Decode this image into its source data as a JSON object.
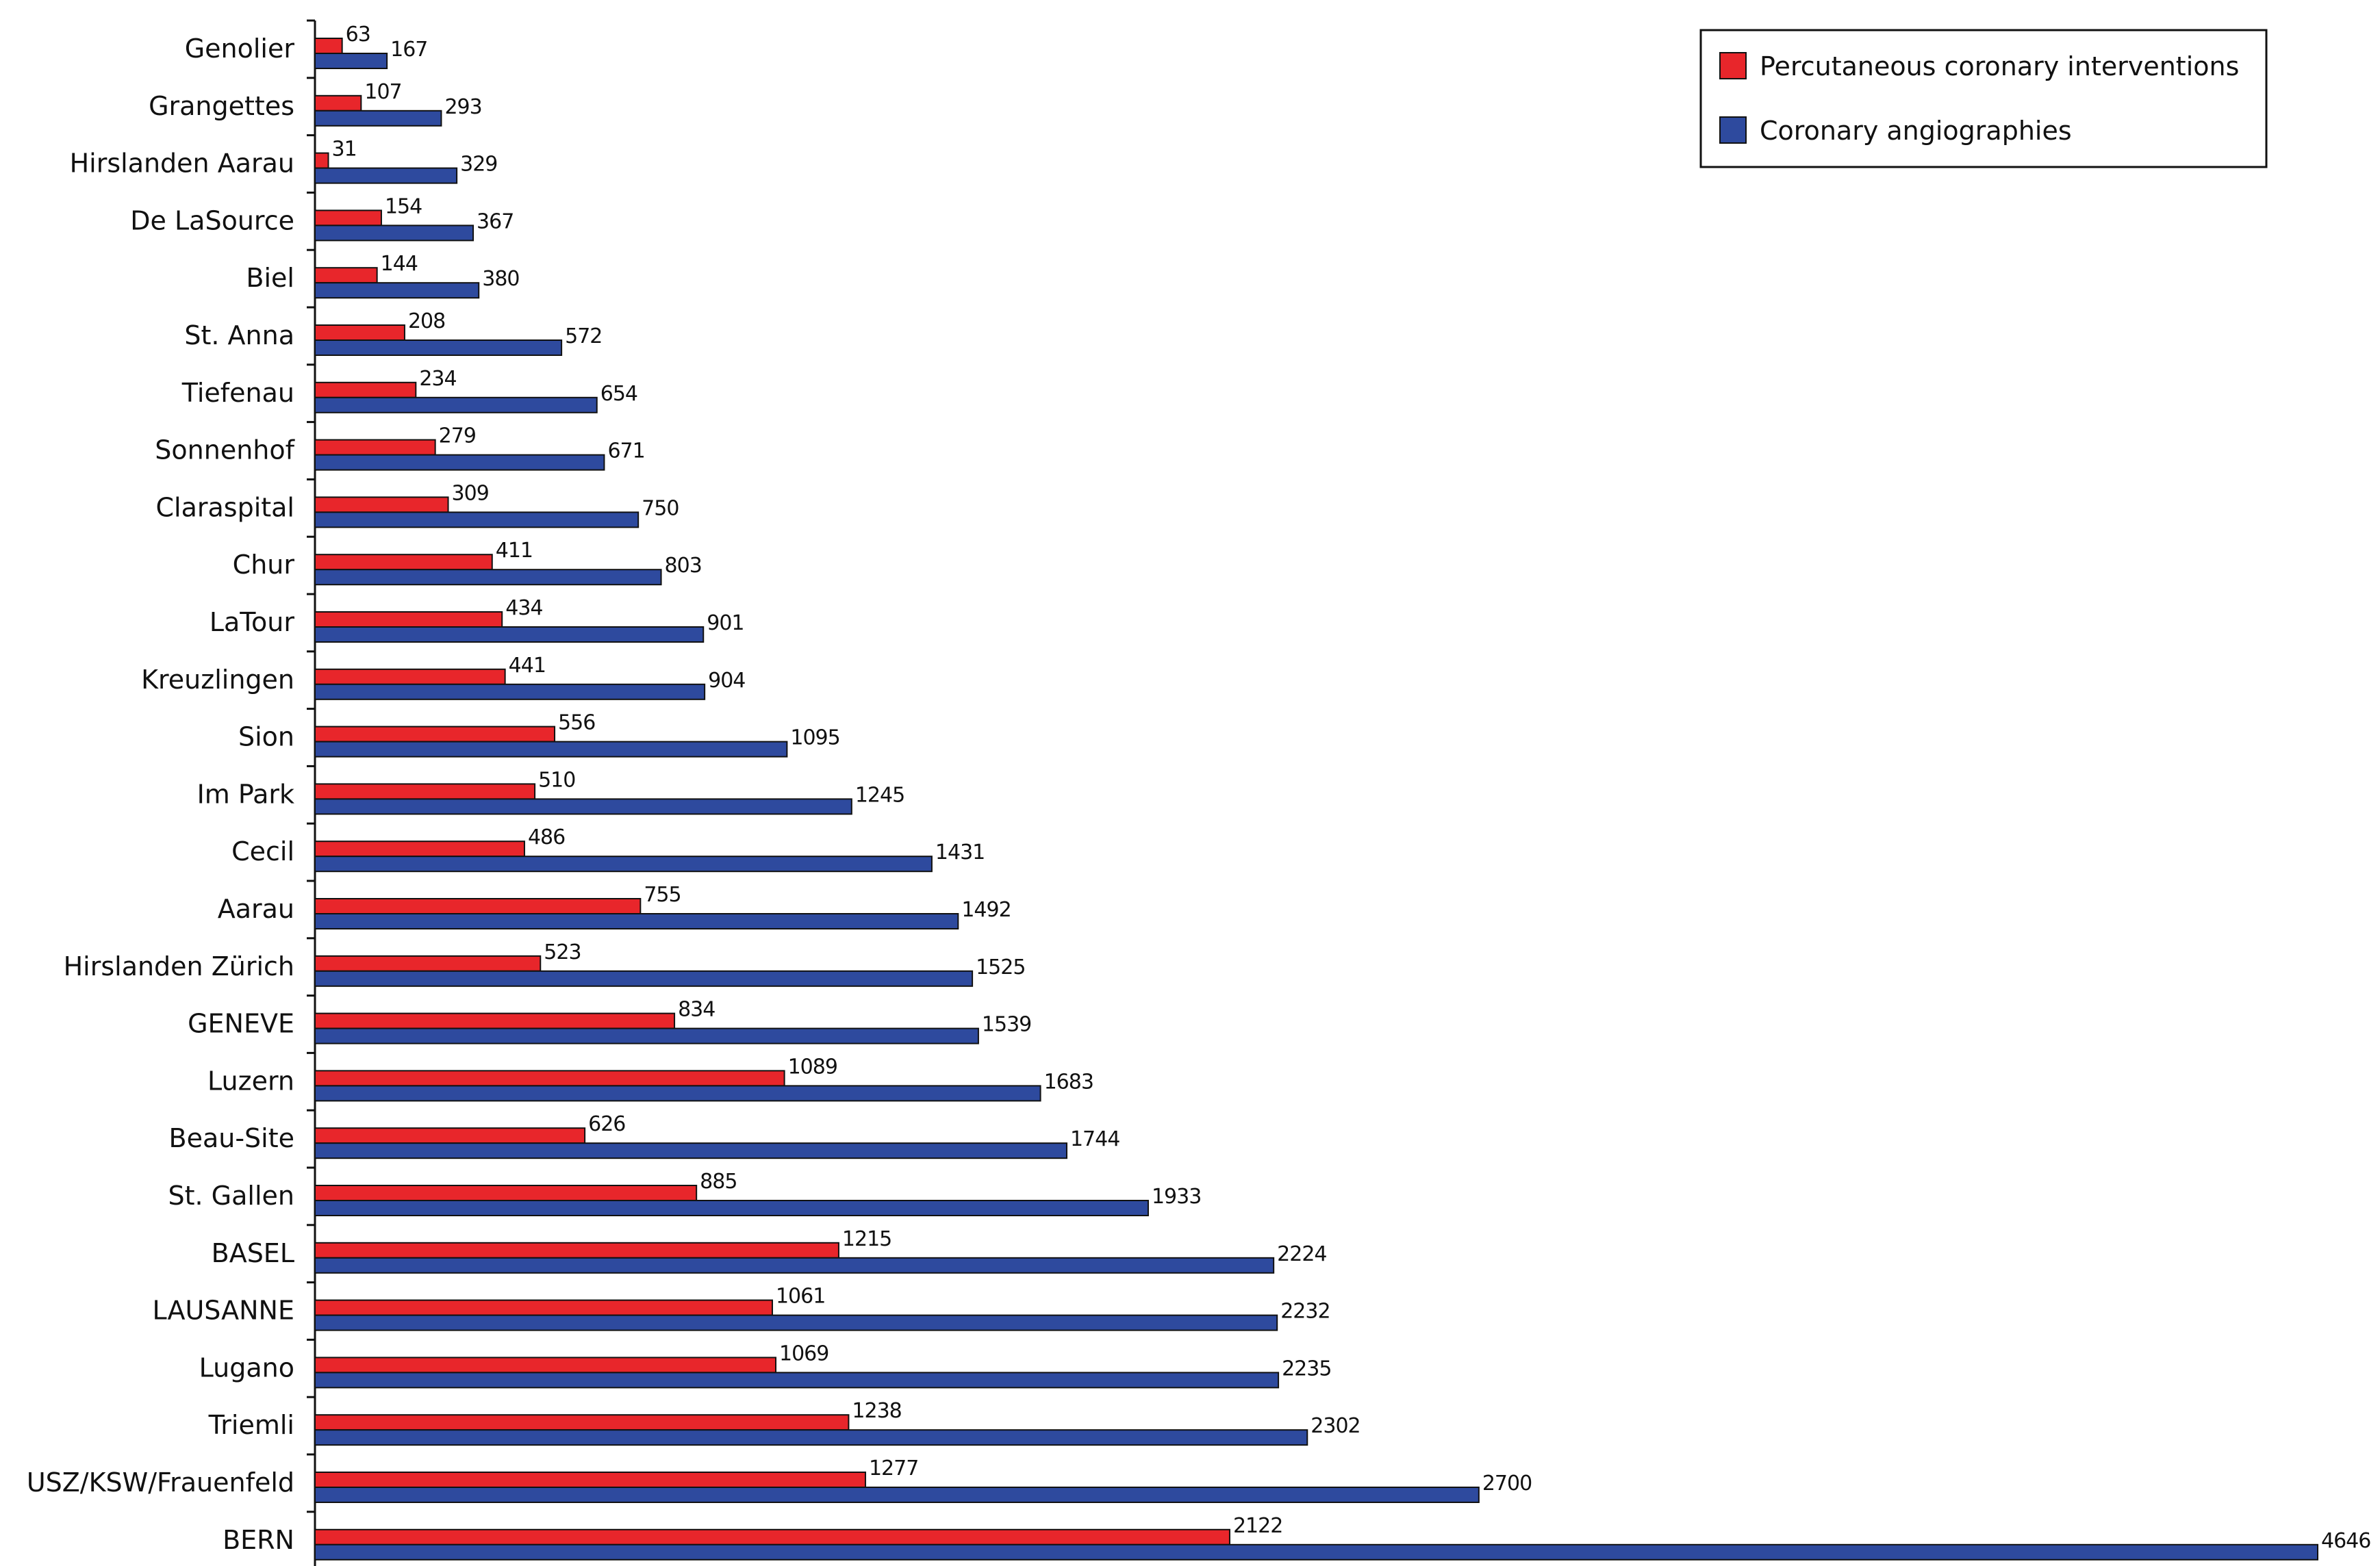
{
  "chart_data": {
    "type": "bar",
    "orientation": "horizontal",
    "title": "",
    "xlabel": "",
    "ylabel": "",
    "xlim": [
      0,
      4646
    ],
    "grid": false,
    "legend_position": "top-right",
    "categories": [
      "Genolier",
      "Grangettes",
      "Hirslanden Aarau",
      "De LaSource",
      "Biel",
      "St. Anna",
      "Tiefenau",
      "Sonnenhof",
      "Claraspital",
      "Chur",
      "LaTour",
      "Kreuzlingen",
      "Sion",
      "Im Park",
      "Cecil",
      "Aarau",
      "Hirslanden Zürich",
      "GENEVE",
      "Luzern",
      "Beau-Site",
      "St. Gallen",
      "BASEL",
      "LAUSANNE",
      "Lugano",
      "Triemli",
      "USZ/KSW/Frauenfeld",
      "BERN"
    ],
    "series": [
      {
        "name": "Percutaneous coronary interventions",
        "color": "#e8262b",
        "values": [
          63,
          107,
          31,
          154,
          144,
          208,
          234,
          279,
          309,
          411,
          434,
          441,
          556,
          510,
          486,
          755,
          523,
          834,
          1089,
          626,
          885,
          1215,
          1061,
          1069,
          1238,
          1277,
          2122
        ]
      },
      {
        "name": "Coronary angiographies",
        "color": "#2e4a9e",
        "values": [
          167,
          293,
          329,
          367,
          380,
          572,
          654,
          671,
          750,
          803,
          901,
          904,
          1095,
          1245,
          1431,
          1492,
          1525,
          1539,
          1683,
          1744,
          1933,
          2224,
          2232,
          2235,
          2302,
          2700,
          4646
        ]
      }
    ]
  }
}
